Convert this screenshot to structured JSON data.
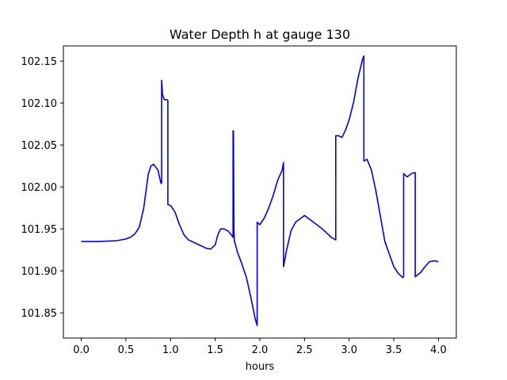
{
  "chart_data": {
    "type": "line",
    "title": "Water Depth h at gauge 130",
    "xlabel": "hours",
    "ylabel": "",
    "xlim": [
      -0.2,
      4.2
    ],
    "ylim": [
      101.82,
      102.168
    ],
    "xticks": [
      0.0,
      0.5,
      1.0,
      1.5,
      2.0,
      2.5,
      3.0,
      3.5,
      4.0
    ],
    "xtick_labels": [
      "0.0",
      "0.5",
      "1.0",
      "1.5",
      "2.0",
      "2.5",
      "3.0",
      "3.5",
      "4.0"
    ],
    "yticks": [
      101.85,
      101.9,
      101.95,
      102.0,
      102.05,
      102.1,
      102.15
    ],
    "ytick_labels": [
      "101.85",
      "101.90",
      "101.95",
      "102.00",
      "102.05",
      "102.10",
      "102.15"
    ],
    "grid": false,
    "series": [
      {
        "color": "#0000ff",
        "x": [
          0.0,
          0.2,
          0.4,
          0.5,
          0.55,
          0.6,
          0.65,
          0.7,
          0.75,
          0.78,
          0.81,
          0.86,
          0.88,
          0.895,
          0.9,
          0.9,
          0.91,
          0.93,
          0.96,
          0.97,
          0.97,
          1.0,
          1.05,
          1.1,
          1.15,
          1.2,
          1.3,
          1.4,
          1.45,
          1.5,
          1.53,
          1.56,
          1.6,
          1.65,
          1.68,
          1.7,
          1.7,
          1.705,
          1.71,
          1.715,
          1.72,
          1.75,
          1.8,
          1.85,
          1.9,
          1.95,
          1.97,
          1.97,
          2.0,
          2.05,
          2.1,
          2.15,
          2.2,
          2.25,
          2.265,
          2.265,
          2.3,
          2.35,
          2.4,
          2.5,
          2.6,
          2.7,
          2.75,
          2.8,
          2.85,
          2.85,
          2.88,
          2.92,
          2.96,
          3.0,
          3.05,
          3.1,
          3.15,
          3.165,
          3.165,
          3.2,
          3.25,
          3.3,
          3.35,
          3.4,
          3.5,
          3.55,
          3.6,
          3.61,
          3.61,
          3.65,
          3.7,
          3.73,
          3.74,
          3.74,
          3.8,
          3.85,
          3.9,
          3.95,
          4.0
        ],
        "y": [
          101.935,
          101.935,
          101.936,
          101.938,
          101.94,
          101.944,
          101.952,
          101.975,
          102.015,
          102.025,
          102.027,
          102.02,
          102.01,
          102.004,
          102.005,
          102.127,
          102.11,
          102.104,
          102.104,
          102.103,
          101.979,
          101.978,
          101.97,
          101.955,
          101.943,
          101.937,
          101.932,
          101.927,
          101.926,
          101.931,
          101.943,
          101.95,
          101.95,
          101.947,
          101.943,
          101.94,
          102.067,
          102.066,
          101.95,
          101.935,
          101.934,
          101.922,
          101.908,
          101.892,
          101.868,
          101.842,
          101.835,
          101.958,
          101.955,
          101.963,
          101.975,
          101.99,
          102.008,
          102.02,
          102.029,
          101.905,
          101.925,
          101.948,
          101.958,
          101.966,
          101.958,
          101.95,
          101.945,
          101.94,
          101.937,
          102.061,
          102.061,
          102.059,
          102.068,
          102.08,
          102.101,
          102.13,
          102.152,
          102.156,
          102.031,
          102.033,
          102.02,
          101.995,
          101.965,
          101.935,
          101.905,
          101.897,
          101.892,
          101.893,
          102.016,
          102.012,
          102.016,
          102.017,
          102.017,
          101.893,
          101.898,
          101.905,
          101.911,
          101.912,
          101.911
        ]
      }
    ]
  }
}
